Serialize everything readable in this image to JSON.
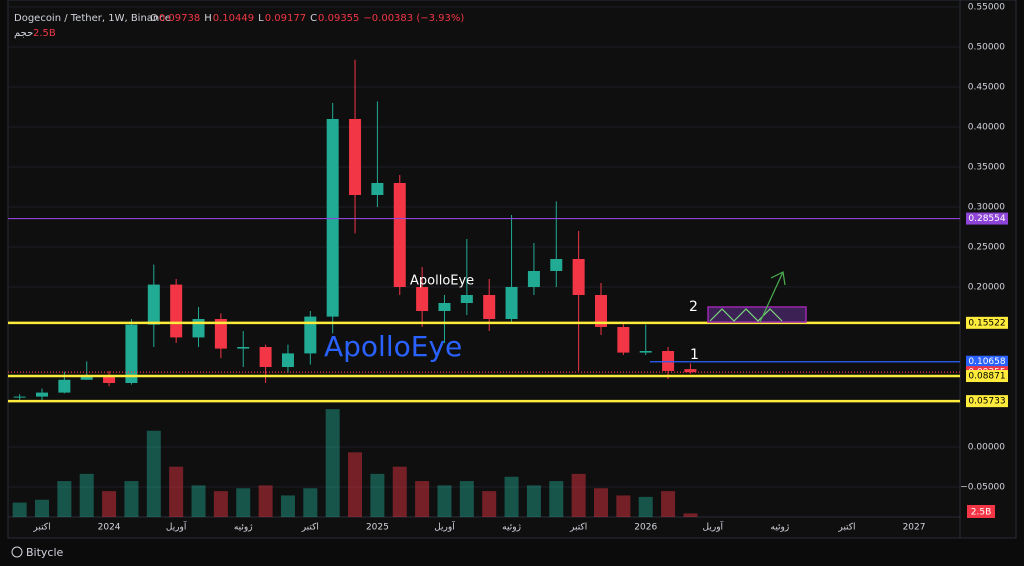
{
  "chart_data": {
    "type": "candlestick",
    "title": "Dogecoin / Tether, 1W, Binance",
    "ohlc_labels": [
      "O",
      "H",
      "L",
      "C"
    ],
    "change_label": "−0.00383 (−3.93%)",
    "categories": [
      null,
      "اكتبر",
      null,
      null,
      "2024",
      null,
      null,
      "آوريل",
      null,
      null,
      "ژوئيه",
      null,
      null,
      "اكتبر",
      null,
      null,
      "2025",
      null,
      null,
      "آوريل",
      null,
      null,
      "ژوئيه",
      null,
      null,
      "اكتبر",
      null,
      null,
      "2026",
      null,
      null,
      "آوريل",
      null,
      null,
      "ژوئيه",
      null,
      null,
      "اكتبر",
      null,
      null,
      "2027",
      null
    ],
    "open": [
      0.063,
      0.063,
      0.068,
      0.084,
      0.09,
      0.08,
      0.153,
      0.203,
      0.137,
      0.16,
      0.123,
      0.125,
      0.1,
      0.117,
      0.163,
      0.41,
      0.315,
      0.33,
      0.2,
      0.17,
      0.18,
      0.19,
      0.16,
      0.2,
      0.22,
      0.235,
      0.19,
      0.15,
      0.118,
      0.12,
      0.09738,
      null,
      null,
      null,
      null,
      null,
      null,
      null,
      null,
      null,
      null,
      null
    ],
    "high": [
      0.066,
      0.073,
      0.094,
      0.107,
      0.095,
      0.16,
      0.228,
      0.21,
      0.175,
      0.167,
      0.145,
      0.128,
      0.128,
      0.17,
      0.43,
      0.484,
      0.432,
      0.34,
      0.225,
      0.19,
      0.26,
      0.21,
      0.29,
      0.255,
      0.307,
      0.27,
      0.205,
      0.155,
      0.153,
      0.125,
      0.10449,
      null,
      null,
      null,
      null,
      null,
      null,
      null,
      null,
      null,
      null,
      null
    ],
    "low": [
      0.057,
      0.058,
      0.067,
      0.084,
      0.076,
      0.078,
      0.125,
      0.13,
      0.125,
      0.111,
      0.1,
      0.08,
      0.093,
      0.103,
      0.142,
      0.267,
      0.3,
      0.19,
      0.15,
      0.13,
      0.165,
      0.145,
      0.155,
      0.19,
      0.2,
      0.095,
      0.14,
      0.115,
      0.115,
      0.085,
      0.09177,
      null,
      null,
      null,
      null,
      null,
      null,
      null,
      null,
      null,
      null,
      null
    ],
    "close": [
      0.063,
      0.068,
      0.084,
      0.09,
      0.08,
      0.153,
      0.203,
      0.137,
      0.16,
      0.123,
      0.125,
      0.1,
      0.117,
      0.163,
      0.41,
      0.315,
      0.33,
      0.2,
      0.17,
      0.18,
      0.19,
      0.16,
      0.2,
      0.22,
      0.235,
      0.19,
      0.15,
      0.118,
      0.12,
      0.095,
      0.09355,
      null,
      null,
      null,
      null,
      null,
      null,
      null,
      null,
      null,
      null,
      null
    ],
    "up_color": "#22ab94",
    "down_color": "#f23645",
    "volume": {
      "name": "حجم",
      "values": [
        10,
        12,
        25,
        30,
        18,
        25,
        60,
        35,
        22,
        18,
        20,
        22,
        15,
        20,
        75,
        45,
        30,
        35,
        25,
        22,
        25,
        18,
        28,
        22,
        25,
        30,
        20,
        15,
        14,
        18,
        2.5,
        null,
        null,
        null,
        null,
        null,
        null,
        null,
        null,
        null,
        null,
        null
      ],
      "value_labels": [
        null,
        null,
        null,
        null,
        null,
        null,
        null,
        null,
        null,
        null,
        null,
        null,
        null,
        null,
        null,
        null,
        null,
        null,
        null,
        null,
        null,
        null,
        null,
        null,
        null,
        null,
        null,
        null,
        null,
        null,
        "2.5B",
        null,
        null,
        null,
        null,
        null,
        null,
        null,
        null,
        null,
        null,
        null
      ],
      "vlim": [
        0,
        80
      ]
    },
    "ylim": [
      -0.0875,
      0.55875
    ],
    "yticks": [
      {
        "value": 0.55,
        "label": "0.55000"
      },
      {
        "value": 0.5,
        "label": "0.50000"
      },
      {
        "value": 0.45,
        "label": "0.45000"
      },
      {
        "value": 0.4,
        "label": "0.40000"
      },
      {
        "value": 0.35,
        "label": "0.35000"
      },
      {
        "value": 0.3,
        "label": "0.30000"
      },
      {
        "value": 0.25,
        "label": "0.25000"
      },
      {
        "value": 0.2,
        "label": "0.20000"
      },
      {
        "value": 0,
        "label": "0.00000"
      },
      {
        "value": -0.05,
        "label": "−0.05000"
      }
    ],
    "levels": [
      {
        "value": 0.28554,
        "color": "#8e44d6"
      },
      {
        "value": 0.15522,
        "color": "#ffeb3b"
      },
      {
        "value": 0.10658,
        "color": "#2962ff"
      },
      {
        "value": 0.09355,
        "color": "#f23645"
      },
      {
        "value": 0.08871,
        "color": "#ffeb3b"
      },
      {
        "value": 0.05733,
        "color": "#ffeb3b"
      }
    ],
    "annotations": [
      "ApolloEye",
      "ApolloEye",
      "1",
      "2"
    ],
    "watermark": "Bitycle"
  }
}
